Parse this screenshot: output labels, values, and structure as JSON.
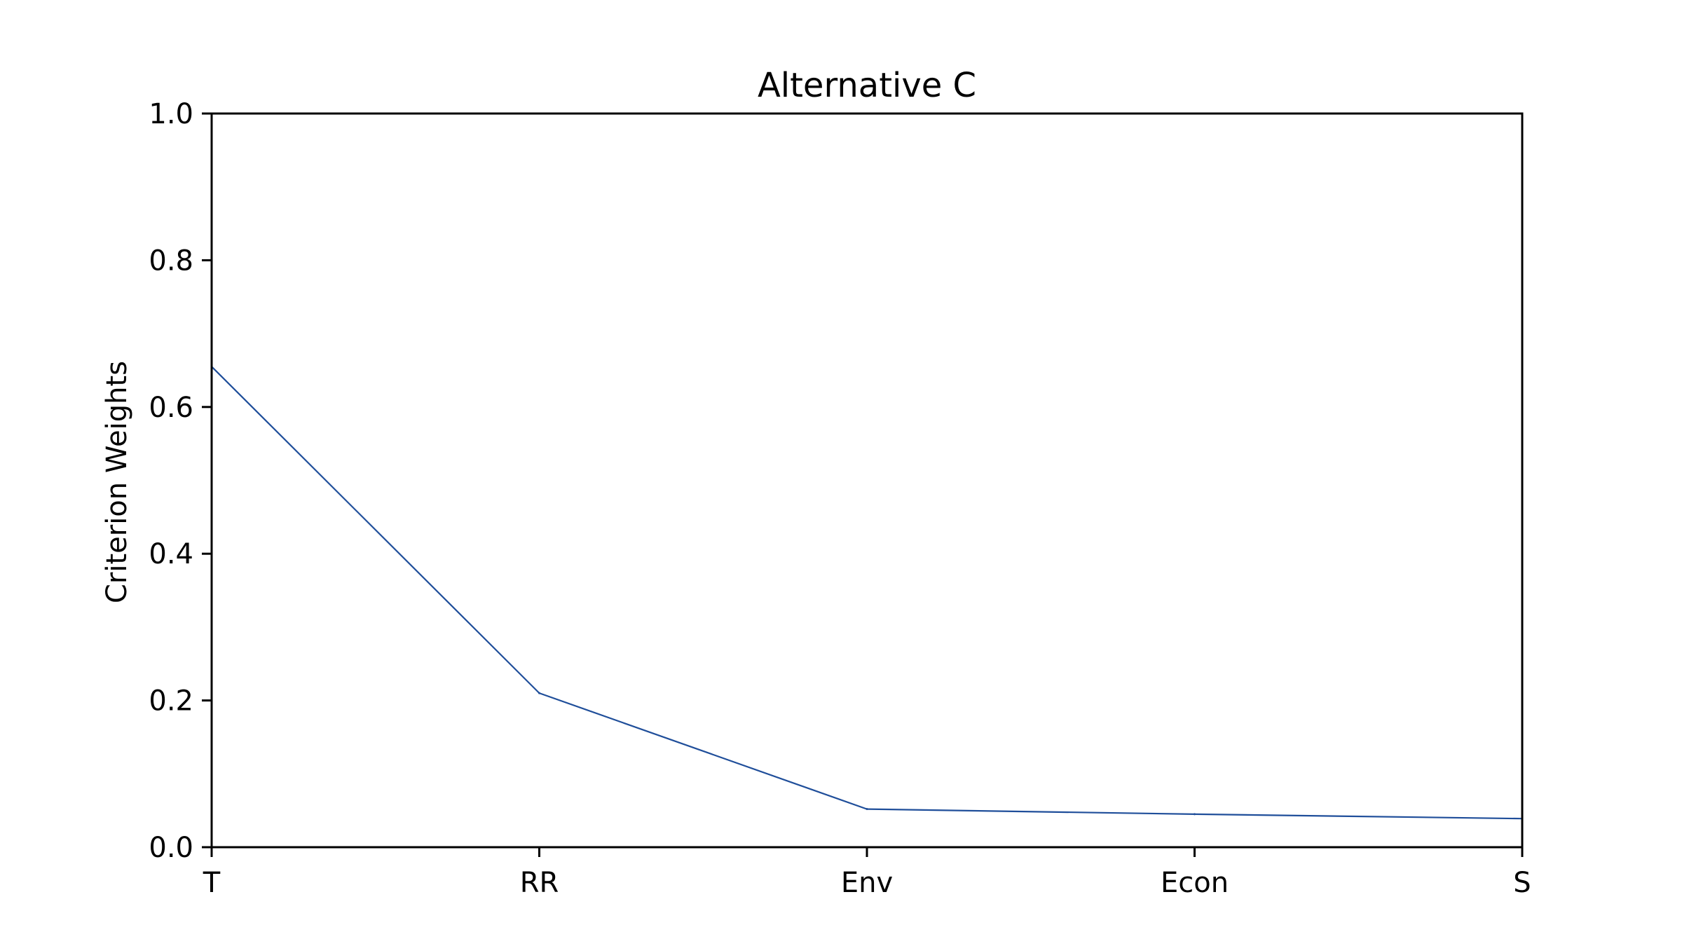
{
  "chart_data": {
    "type": "line",
    "title": "Alternative C",
    "xlabel": "",
    "ylabel": "Criterion Weights",
    "categories": [
      "T",
      "RR",
      "Env",
      "Econ",
      "S"
    ],
    "series": [
      {
        "values": [
          0.655,
          0.21,
          0.052,
          0.045,
          0.039
        ]
      }
    ],
    "ylim": [
      0,
      1
    ],
    "yticks": [
      "0.0",
      "0.2",
      "0.4",
      "0.6",
      "0.8",
      "1.0"
    ],
    "grid": false,
    "legend": "none",
    "colors": {
      "line": "#1f4e9a",
      "axis": "#000000",
      "background": "#ffffff"
    }
  }
}
